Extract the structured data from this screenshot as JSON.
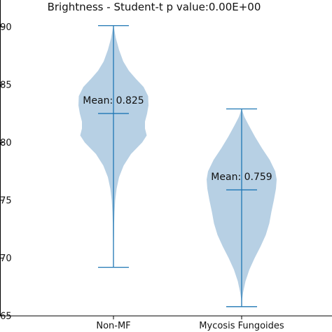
{
  "chart_data": {
    "type": "violin",
    "title": "Brightness -  Student-t p value:0.00E+00",
    "xlabel": "",
    "ylabel": "",
    "ylim": [
      0.65,
      0.905
    ],
    "yticks": [
      0.65,
      0.7,
      0.75,
      0.8,
      0.85,
      0.9
    ],
    "ytick_labels": [
      ".65",
      ".70",
      ".75",
      ".80",
      ".85",
      ".90"
    ],
    "categories": [
      "Non-MF",
      "Mycosis Fungoides"
    ],
    "colors": {
      "fill": "#b3cde3",
      "line": "#1f77b4"
    },
    "violins": [
      {
        "name": "Non-MF",
        "min": 0.692,
        "max": 0.901,
        "mean": 0.825,
        "mean_label": "Mean: 0.825",
        "profile": [
          [
            0.692,
            0.0
          ],
          [
            0.7,
            0.004
          ],
          [
            0.71,
            0.008
          ],
          [
            0.72,
            0.013
          ],
          [
            0.73,
            0.018
          ],
          [
            0.74,
            0.03
          ],
          [
            0.75,
            0.05
          ],
          [
            0.76,
            0.09
          ],
          [
            0.77,
            0.16
          ],
          [
            0.78,
            0.29
          ],
          [
            0.79,
            0.5
          ],
          [
            0.8,
            0.82
          ],
          [
            0.806,
            0.95
          ],
          [
            0.812,
            0.9
          ],
          [
            0.818,
            0.9
          ],
          [
            0.825,
            0.96
          ],
          [
            0.832,
            1.0
          ],
          [
            0.84,
            0.99
          ],
          [
            0.848,
            0.86
          ],
          [
            0.855,
            0.64
          ],
          [
            0.862,
            0.44
          ],
          [
            0.87,
            0.28
          ],
          [
            0.88,
            0.16
          ],
          [
            0.89,
            0.07
          ],
          [
            0.898,
            0.02
          ],
          [
            0.901,
            0.0
          ]
        ]
      },
      {
        "name": "Mycosis Fungoides",
        "min": 0.658,
        "max": 0.829,
        "mean": 0.759,
        "mean_label": "Mean: 0.759",
        "profile": [
          [
            0.658,
            0.0
          ],
          [
            0.665,
            0.015
          ],
          [
            0.67,
            0.04
          ],
          [
            0.68,
            0.11
          ],
          [
            0.69,
            0.22
          ],
          [
            0.7,
            0.37
          ],
          [
            0.71,
            0.54
          ],
          [
            0.72,
            0.69
          ],
          [
            0.73,
            0.79
          ],
          [
            0.74,
            0.85
          ],
          [
            0.75,
            0.92
          ],
          [
            0.76,
            0.98
          ],
          [
            0.768,
            1.0
          ],
          [
            0.775,
            0.96
          ],
          [
            0.785,
            0.8
          ],
          [
            0.795,
            0.58
          ],
          [
            0.805,
            0.38
          ],
          [
            0.815,
            0.2
          ],
          [
            0.822,
            0.08
          ],
          [
            0.829,
            0.0
          ]
        ]
      }
    ]
  }
}
